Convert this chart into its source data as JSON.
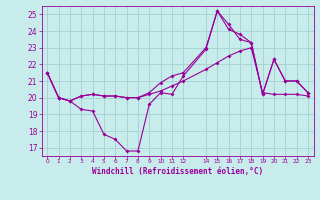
{
  "xlabel": "Windchill (Refroidissement éolien,°C)",
  "background_color": "#c8ecec",
  "grid_color": "#aad4d4",
  "line_color": "#990099",
  "ylim": [
    16.5,
    25.5
  ],
  "xlim": [
    -0.5,
    23.5
  ],
  "yticks": [
    17,
    18,
    19,
    20,
    21,
    22,
    23,
    24,
    25
  ],
  "xticks": [
    0,
    1,
    2,
    3,
    4,
    5,
    6,
    7,
    8,
    9,
    10,
    11,
    12,
    14,
    15,
    16,
    17,
    18,
    19,
    20,
    21,
    22,
    23
  ],
  "line1_x": [
    0,
    1,
    2,
    3,
    4,
    5,
    6,
    7,
    8,
    9,
    10,
    11,
    12,
    14,
    15,
    16,
    17,
    18,
    19,
    20,
    21,
    22,
    23
  ],
  "line1_y": [
    21.5,
    20.0,
    19.8,
    19.3,
    19.2,
    17.8,
    17.5,
    16.8,
    16.8,
    19.6,
    20.3,
    20.2,
    21.3,
    22.9,
    25.2,
    24.1,
    23.8,
    23.3,
    20.2,
    22.3,
    21.0,
    21.0,
    20.3
  ],
  "line2_x": [
    0,
    1,
    2,
    3,
    4,
    5,
    6,
    7,
    8,
    9,
    10,
    11,
    12,
    14,
    15,
    16,
    17,
    18,
    19,
    20,
    21,
    22,
    23
  ],
  "line2_y": [
    21.5,
    20.0,
    19.8,
    20.1,
    20.2,
    20.1,
    20.1,
    20.0,
    20.0,
    20.2,
    20.4,
    20.7,
    21.0,
    21.7,
    22.1,
    22.5,
    22.8,
    23.0,
    20.3,
    20.2,
    20.2,
    20.2,
    20.1
  ],
  "line3_x": [
    0,
    1,
    2,
    3,
    4,
    5,
    6,
    7,
    8,
    9,
    10,
    11,
    12,
    14,
    15,
    16,
    17,
    18,
    19,
    20,
    21,
    22,
    23
  ],
  "line3_y": [
    21.5,
    20.0,
    19.8,
    20.1,
    20.2,
    20.1,
    20.1,
    20.0,
    20.0,
    20.3,
    20.9,
    21.3,
    21.5,
    23.0,
    25.2,
    24.4,
    23.5,
    23.3,
    20.2,
    22.3,
    21.0,
    21.0,
    20.3
  ],
  "ylabel_fontsize": 4.5,
  "xlabel_fontsize": 5.5,
  "ytick_fontsize": 5.5,
  "xtick_fontsize": 4.2
}
